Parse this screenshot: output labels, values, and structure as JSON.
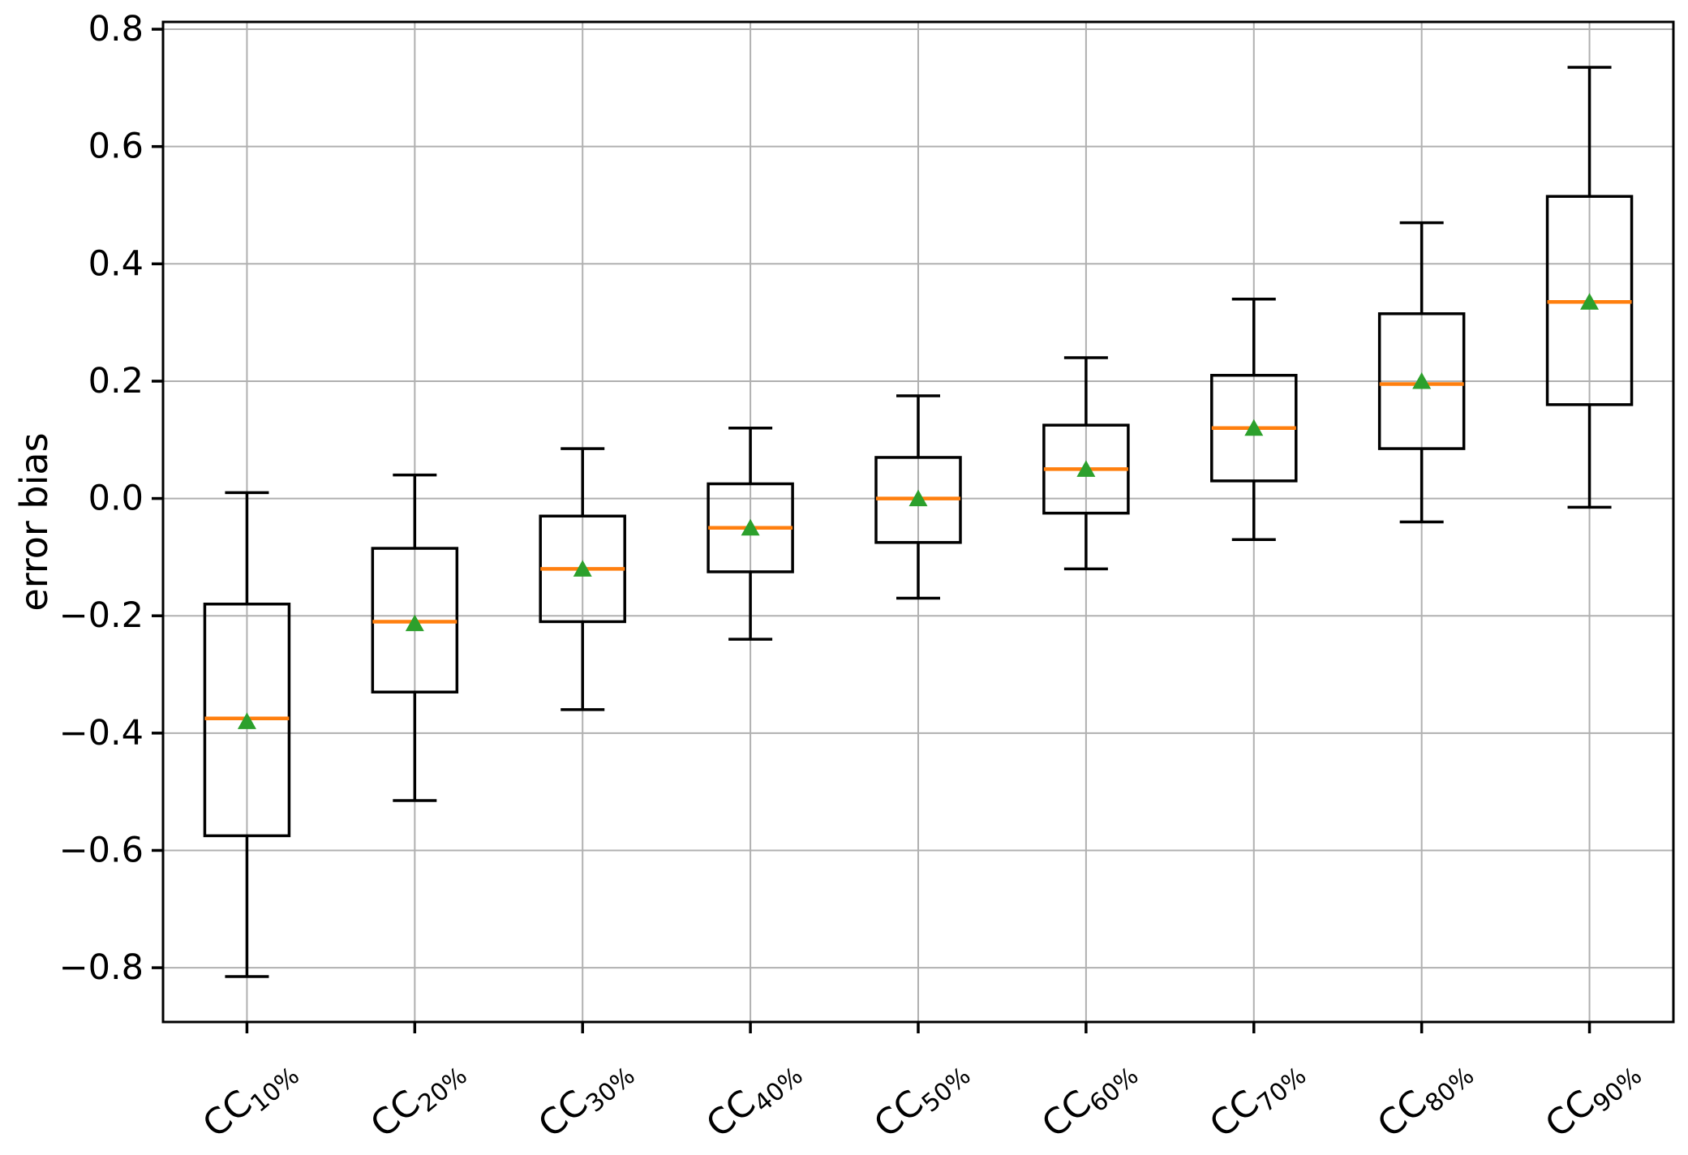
{
  "figure": {
    "ylabel": "error bias"
  },
  "chart_data": {
    "type": "box",
    "title": "",
    "xlabel": "",
    "ylabel": "error bias",
    "ylim": [
      -0.8925,
      0.8125
    ],
    "yticks": [
      0.8,
      0.6,
      0.4,
      0.2,
      0.0,
      -0.2,
      -0.4,
      -0.6,
      -0.8
    ],
    "ytick_labels": [
      "0.8",
      "0.6",
      "0.4",
      "0.2",
      "0.0",
      "−0.2",
      "−0.4",
      "−0.6",
      "−0.8"
    ],
    "grid": true,
    "legend": "none",
    "x_tick_rotation_deg": 40,
    "mean_marker_shape": "triangle-up",
    "categories": [
      {
        "base": "CC",
        "sub": "10%",
        "label": "CC10%"
      },
      {
        "base": "CC",
        "sub": "20%",
        "label": "CC20%"
      },
      {
        "base": "CC",
        "sub": "30%",
        "label": "CC30%"
      },
      {
        "base": "CC",
        "sub": "40%",
        "label": "CC40%"
      },
      {
        "base": "CC",
        "sub": "50%",
        "label": "CC50%"
      },
      {
        "base": "CC",
        "sub": "60%",
        "label": "CC60%"
      },
      {
        "base": "CC",
        "sub": "70%",
        "label": "CC70%"
      },
      {
        "base": "CC",
        "sub": "80%",
        "label": "CC80%"
      },
      {
        "base": "CC",
        "sub": "90%",
        "label": "CC90%"
      }
    ],
    "boxes": [
      {
        "label": "CC10%",
        "whislo": -0.815,
        "q1": -0.575,
        "med": -0.375,
        "mean": -0.38,
        "q3": -0.18,
        "whishi": 0.01
      },
      {
        "label": "CC20%",
        "whislo": -0.515,
        "q1": -0.33,
        "med": -0.21,
        "mean": -0.213,
        "q3": -0.085,
        "whishi": 0.04
      },
      {
        "label": "CC30%",
        "whislo": -0.36,
        "q1": -0.21,
        "med": -0.12,
        "mean": -0.12,
        "q3": -0.03,
        "whishi": 0.085
      },
      {
        "label": "CC40%",
        "whislo": -0.24,
        "q1": -0.125,
        "med": -0.05,
        "mean": -0.05,
        "q3": 0.025,
        "whishi": 0.12
      },
      {
        "label": "CC50%",
        "whislo": -0.17,
        "q1": -0.075,
        "med": 0.0,
        "mean": 0.0,
        "q3": 0.07,
        "whishi": 0.175
      },
      {
        "label": "CC60%",
        "whislo": -0.12,
        "q1": -0.025,
        "med": 0.05,
        "mean": 0.05,
        "q3": 0.125,
        "whishi": 0.24
      },
      {
        "label": "CC70%",
        "whislo": -0.07,
        "q1": 0.03,
        "med": 0.12,
        "mean": 0.12,
        "q3": 0.21,
        "whishi": 0.34
      },
      {
        "label": "CC80%",
        "whislo": -0.04,
        "q1": 0.085,
        "med": 0.195,
        "mean": 0.2,
        "q3": 0.315,
        "whishi": 0.47
      },
      {
        "label": "CC90%",
        "whislo": -0.015,
        "q1": 0.16,
        "med": 0.335,
        "mean": 0.335,
        "q3": 0.515,
        "whishi": 0.735
      }
    ],
    "colors": {
      "box_edge": "#000000",
      "whisker": "#000000",
      "median": "#ff7f0e",
      "mean_marker": "#2ca02c",
      "grid": "#b0b0b0",
      "frame": "#000000",
      "tick_label": "#000000",
      "background": "#ffffff"
    }
  }
}
